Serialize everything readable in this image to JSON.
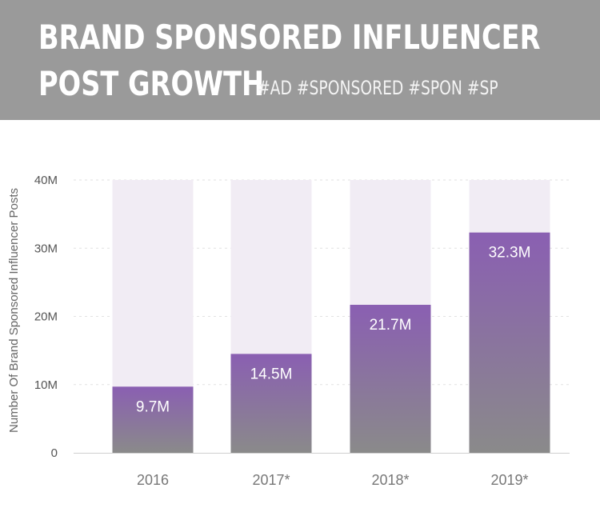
{
  "header": {
    "title_line_1": "BRAND SPONSORED INFLUENCER",
    "title_line_2": "POST GROWTH",
    "hashtags": "#AD #SPONSORED #SPON #SP"
  },
  "colors": {
    "header_bg": "#9a9a9a",
    "bar_top": "#8a5fb2",
    "bar_bottom": "#8a8a8a",
    "bar_track": "#f1ecf4",
    "gridline": "#e2e2e2"
  },
  "chart_data": {
    "type": "bar",
    "title": "BRAND SPONSORED INFLUENCER POST GROWTH",
    "subtitle": "#AD #SPONSORED #SPON #SP",
    "categories": [
      "2016",
      "2017*",
      "2018*",
      "2019*"
    ],
    "values": [
      9.7,
      14.5,
      21.7,
      32.3
    ],
    "value_labels": [
      "9.7M",
      "14.5M",
      "21.7M",
      "32.3M"
    ],
    "ylabel": "Number Of Brand Sponsored Influencer Posts",
    "xlabel": "",
    "ylim": [
      0,
      40
    ],
    "y_ticks": [
      0,
      10,
      20,
      30,
      40
    ],
    "y_tick_labels": [
      "0",
      "10M",
      "20M",
      "30M",
      "40M"
    ],
    "grid": true,
    "legend": "none"
  }
}
